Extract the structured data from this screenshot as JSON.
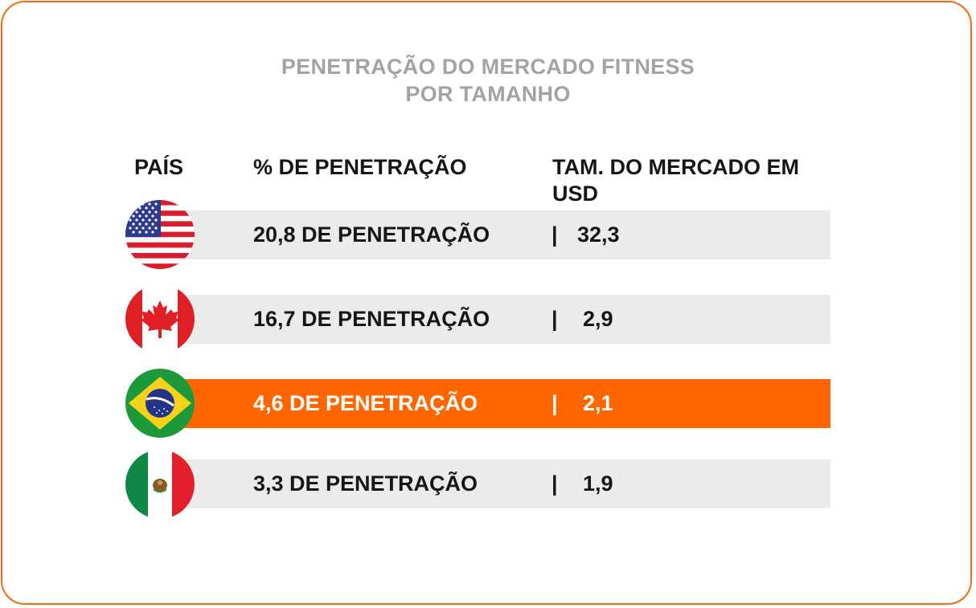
{
  "chart_data": {
    "type": "table",
    "title_line1": "PENETRAÇÃO DO MERCADO FITNESS",
    "title_line2": "POR TAMANHO",
    "columns": [
      "PAÍS",
      "% DE PENETRAÇÃO",
      "TAM. DO MERCADO EM",
      "USD"
    ],
    "separator": "|",
    "rows": [
      {
        "flag": "usa-flag-icon",
        "penetration": 20.8,
        "penetration_text": "20,8 DE PENETRAÇÃO",
        "market_size_usd": 32.3,
        "market_size_text": "32,3",
        "highlighted": false
      },
      {
        "flag": "canada-flag-icon",
        "penetration": 16.7,
        "penetration_text": "16,7 DE PENETRAÇÃO",
        "market_size_usd": 2.9,
        "market_size_text": "2,9",
        "highlighted": false
      },
      {
        "flag": "brazil-flag-icon",
        "penetration": 4.6,
        "penetration_text": "4,6 DE PENETRAÇÃO",
        "market_size_usd": 2.1,
        "market_size_text": "2,1",
        "highlighted": true
      },
      {
        "flag": "mexico-flag-icon",
        "penetration": 3.3,
        "penetration_text": "3,3 DE PENETRAÇÃO",
        "market_size_usd": 1.9,
        "market_size_text": "1,9",
        "highlighted": false
      }
    ]
  },
  "colors": {
    "accent": "#ff6600",
    "border": "#f26a11",
    "row_background": "#ebebeb",
    "title": "#a3a3a3",
    "text": "#161616"
  }
}
